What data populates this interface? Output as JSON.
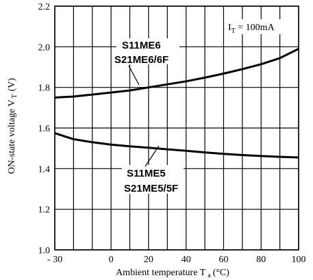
{
  "chart_data": {
    "type": "line",
    "xlabel_main": "Ambient temperature T",
    "xlabel_sub": "a",
    "xlabel_unit": "(°C)",
    "ylabel_main": "ON-state voltage V",
    "ylabel_sub": "T",
    "ylabel_unit": "(V)",
    "condition_main": "I",
    "condition_sub": "T",
    "condition_value": " = 100mA",
    "xlim": [
      -30,
      100
    ],
    "ylim": [
      1.0,
      2.2
    ],
    "xticks": [
      -30,
      0,
      20,
      40,
      60,
      80,
      100
    ],
    "xtick_labels": [
      "- 30",
      "0",
      "20",
      "40",
      "60",
      "80",
      "100"
    ],
    "yticks": [
      1.0,
      1.2,
      1.4,
      1.6,
      1.8,
      2.0,
      2.2
    ],
    "ytick_labels": [
      "1.0",
      "1.2",
      "1.4",
      "1.6",
      "1.8",
      "2.0",
      "2.2"
    ],
    "x_grid": [
      -30,
      -20,
      -10,
      0,
      10,
      20,
      30,
      40,
      50,
      60,
      70,
      80,
      90,
      100
    ],
    "y_grid": [
      1.0,
      1.2,
      1.4,
      1.6,
      1.8,
      2.0,
      2.2
    ],
    "grid": true,
    "series": [
      {
        "name": "S11ME6 / S21ME6/6F",
        "label_lines": [
          "S11ME6",
          "S21ME6/6F"
        ],
        "x": [
          -30,
          -20,
          -10,
          0,
          10,
          20,
          30,
          40,
          50,
          60,
          70,
          80,
          90,
          100
        ],
        "y": [
          1.75,
          1.755,
          1.765,
          1.775,
          1.785,
          1.8,
          1.815,
          1.83,
          1.848,
          1.868,
          1.89,
          1.914,
          1.944,
          1.99
        ]
      },
      {
        "name": "S11ME5 / S21ME5/5F",
        "label_lines": [
          "S11ME5",
          "S21ME5/5F"
        ],
        "x": [
          -30,
          -25,
          -20,
          -10,
          0,
          10,
          20,
          30,
          40,
          50,
          60,
          70,
          80,
          90,
          100
        ],
        "y": [
          1.575,
          1.56,
          1.545,
          1.53,
          1.518,
          1.51,
          1.503,
          1.495,
          1.488,
          1.48,
          1.473,
          1.467,
          1.462,
          1.458,
          1.455
        ]
      }
    ]
  }
}
